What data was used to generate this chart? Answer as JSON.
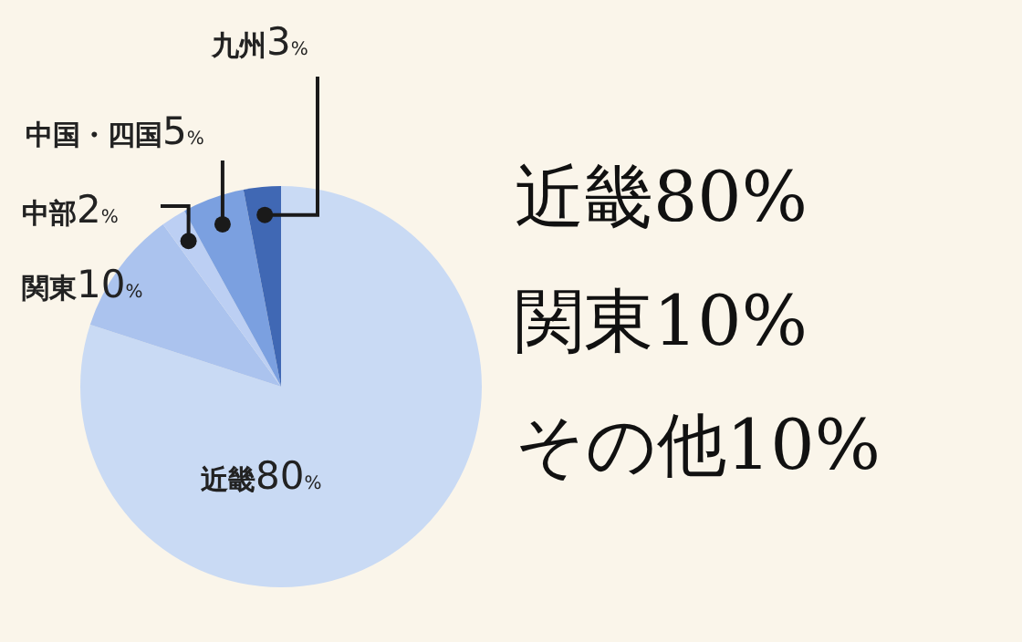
{
  "chart_data": {
    "type": "pie",
    "categories": [
      "近畿",
      "関東",
      "中部",
      "中国・四国",
      "九州"
    ],
    "values": [
      80,
      10,
      2,
      5,
      3
    ],
    "value_labels": [
      "80%",
      "10%",
      "2%",
      "5%",
      "3%"
    ],
    "colors": [
      "#c9daf4",
      "#abc3ee",
      "#bccff3",
      "#7ba0e0",
      "#4068b4"
    ],
    "annotations": [
      "近畿80%",
      "関東10%",
      "その他10%"
    ]
  }
}
